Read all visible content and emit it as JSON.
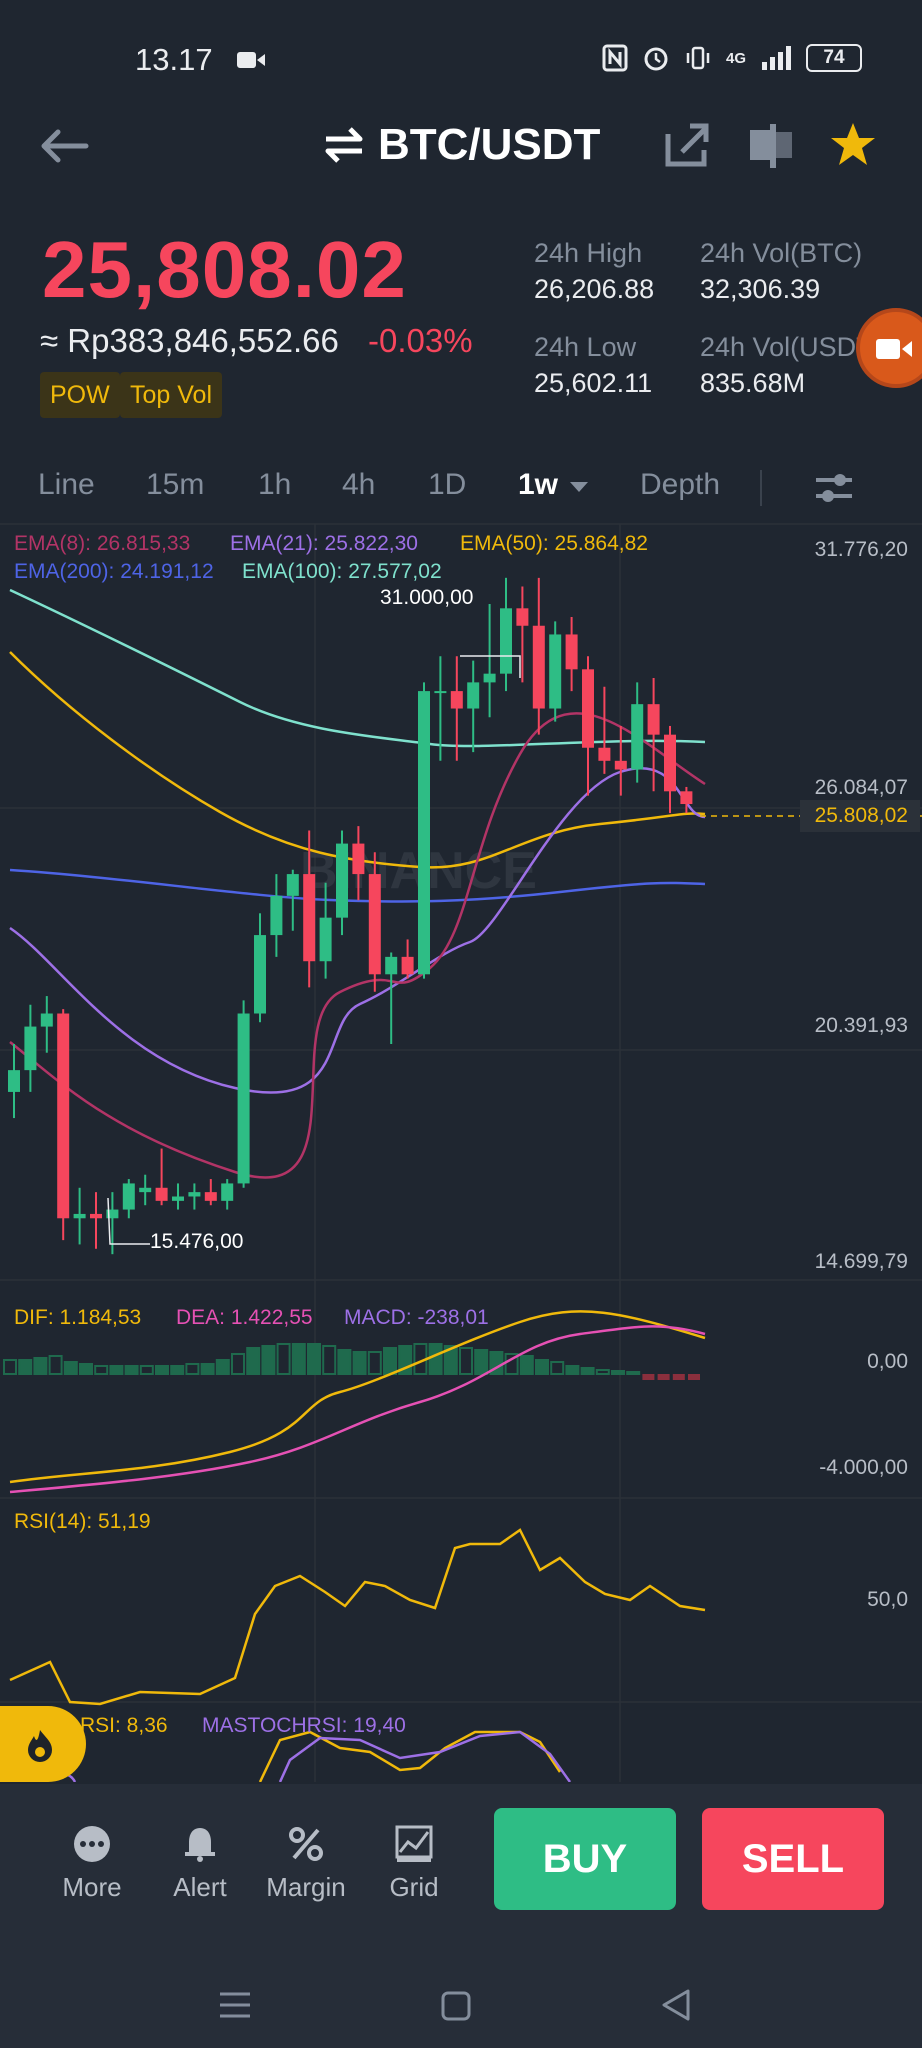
{
  "status_bar": {
    "time": "13.17",
    "network": "4G",
    "battery": "74"
  },
  "header": {
    "pair": "BTC/USDT"
  },
  "price": {
    "last": "25,808.02",
    "fiat": "≈ Rp383,846,552.66",
    "change": "-0.03%",
    "tags": [
      "POW",
      "Top Vol"
    ]
  },
  "stats": {
    "high_label": "24h High",
    "high": "26,206.88",
    "low_label": "24h Low",
    "low": "25,602.11",
    "vol_btc_label": "24h Vol(BTC)",
    "vol_btc": "32,306.39",
    "vol_usdt_label": "24h Vol(USDT)",
    "vol_usdt": "835.68M"
  },
  "intervals": [
    "Line",
    "15m",
    "1h",
    "4h",
    "1D",
    "1w",
    "Depth"
  ],
  "active_interval": "1w",
  "indicators": {
    "ema8": "EMA(8): 26.815,33",
    "ema21": "EMA(21): 25.822,30",
    "ema50": "EMA(50): 25.864,82",
    "ema200": "EMA(200): 24.191,12",
    "ema100": "EMA(100): 27.577,02",
    "dif": "DIF: 1.184,53",
    "dea": "DEA: 1.422,55",
    "macd": "MACD: -238,01",
    "rsi": "RSI(14): 51,19",
    "stochrsi": "RSI: 8,36",
    "mastochrsi": "MASTOCHRSI: 19,40"
  },
  "axis": {
    "p1": "31.776,20",
    "p2": "26.084,07",
    "current": "25.808,02",
    "p3": "20.391,93",
    "p4": "14.699,79",
    "macd_zero": "0,00",
    "macd_low": "-4.000,00",
    "rsi_mid": "50,0",
    "high_mark": "31.000,00",
    "low_mark": "15.476,00"
  },
  "watermark": "BINANCE",
  "colors": {
    "up": "#2ebd85",
    "down": "#f6465d",
    "accent": "#f0b90b"
  },
  "chart_data": {
    "type": "candlestick",
    "ylim": [
      14699.79,
      31776.2
    ],
    "candles": [
      {
        "o": 19200,
        "h": 20300,
        "l": 18600,
        "c": 19700
      },
      {
        "o": 19700,
        "h": 21200,
        "l": 19200,
        "c": 20700
      },
      {
        "o": 20700,
        "h": 21400,
        "l": 20100,
        "c": 21000
      },
      {
        "o": 21000,
        "h": 21100,
        "l": 15800,
        "c": 16300
      },
      {
        "o": 16300,
        "h": 17000,
        "l": 15700,
        "c": 16400
      },
      {
        "o": 16400,
        "h": 16900,
        "l": 15600,
        "c": 16300
      },
      {
        "o": 16300,
        "h": 16900,
        "l": 15476,
        "c": 16500
      },
      {
        "o": 16500,
        "h": 17200,
        "l": 16300,
        "c": 17100
      },
      {
        "o": 16900,
        "h": 17300,
        "l": 16600,
        "c": 17000
      },
      {
        "o": 17000,
        "h": 17900,
        "l": 16600,
        "c": 16700
      },
      {
        "o": 16700,
        "h": 17100,
        "l": 16500,
        "c": 16800
      },
      {
        "o": 16800,
        "h": 17100,
        "l": 16500,
        "c": 16900
      },
      {
        "o": 16900,
        "h": 17200,
        "l": 16600,
        "c": 16700
      },
      {
        "o": 16700,
        "h": 17200,
        "l": 16500,
        "c": 17100
      },
      {
        "o": 17100,
        "h": 21300,
        "l": 17000,
        "c": 21000
      },
      {
        "o": 21000,
        "h": 23300,
        "l": 20800,
        "c": 22800
      },
      {
        "o": 22800,
        "h": 24200,
        "l": 22300,
        "c": 23700
      },
      {
        "o": 23700,
        "h": 24300,
        "l": 22900,
        "c": 24200
      },
      {
        "o": 24200,
        "h": 25200,
        "l": 21600,
        "c": 22200
      },
      {
        "o": 22200,
        "h": 24000,
        "l": 21800,
        "c": 23200
      },
      {
        "o": 23200,
        "h": 25200,
        "l": 22800,
        "c": 24900
      },
      {
        "o": 24900,
        "h": 25300,
        "l": 23600,
        "c": 24200
      },
      {
        "o": 24200,
        "h": 24700,
        "l": 21500,
        "c": 21900
      },
      {
        "o": 21900,
        "h": 22400,
        "l": 20300,
        "c": 22300
      },
      {
        "o": 22300,
        "h": 22700,
        "l": 21800,
        "c": 21900
      },
      {
        "o": 21900,
        "h": 28600,
        "l": 21800,
        "c": 28400
      },
      {
        "o": 28400,
        "h": 29200,
        "l": 26800,
        "c": 28400
      },
      {
        "o": 28400,
        "h": 29200,
        "l": 26800,
        "c": 28000
      },
      {
        "o": 28000,
        "h": 29100,
        "l": 27000,
        "c": 28600
      },
      {
        "o": 28600,
        "h": 30400,
        "l": 27800,
        "c": 28800
      },
      {
        "o": 28800,
        "h": 31000,
        "l": 28400,
        "c": 30300
      },
      {
        "o": 30300,
        "h": 30800,
        "l": 28600,
        "c": 29900
      },
      {
        "o": 29900,
        "h": 31000,
        "l": 27400,
        "c": 28000
      },
      {
        "o": 28000,
        "h": 30000,
        "l": 27700,
        "c": 29700
      },
      {
        "o": 29700,
        "h": 30100,
        "l": 28400,
        "c": 28900
      },
      {
        "o": 28900,
        "h": 29200,
        "l": 26000,
        "c": 27100
      },
      {
        "o": 27100,
        "h": 28500,
        "l": 26500,
        "c": 26800
      },
      {
        "o": 26800,
        "h": 27600,
        "l": 26000,
        "c": 26600
      },
      {
        "o": 26600,
        "h": 28600,
        "l": 26300,
        "c": 28100
      },
      {
        "o": 28100,
        "h": 28700,
        "l": 26100,
        "c": 27400
      },
      {
        "o": 27400,
        "h": 27600,
        "l": 25600,
        "c": 26100
      },
      {
        "o": 26100,
        "h": 26200,
        "l": 25600,
        "c": 25808
      }
    ]
  },
  "actions": {
    "more": "More",
    "alert": "Alert",
    "margin": "Margin",
    "grid": "Grid",
    "buy": "BUY",
    "sell": "SELL"
  }
}
